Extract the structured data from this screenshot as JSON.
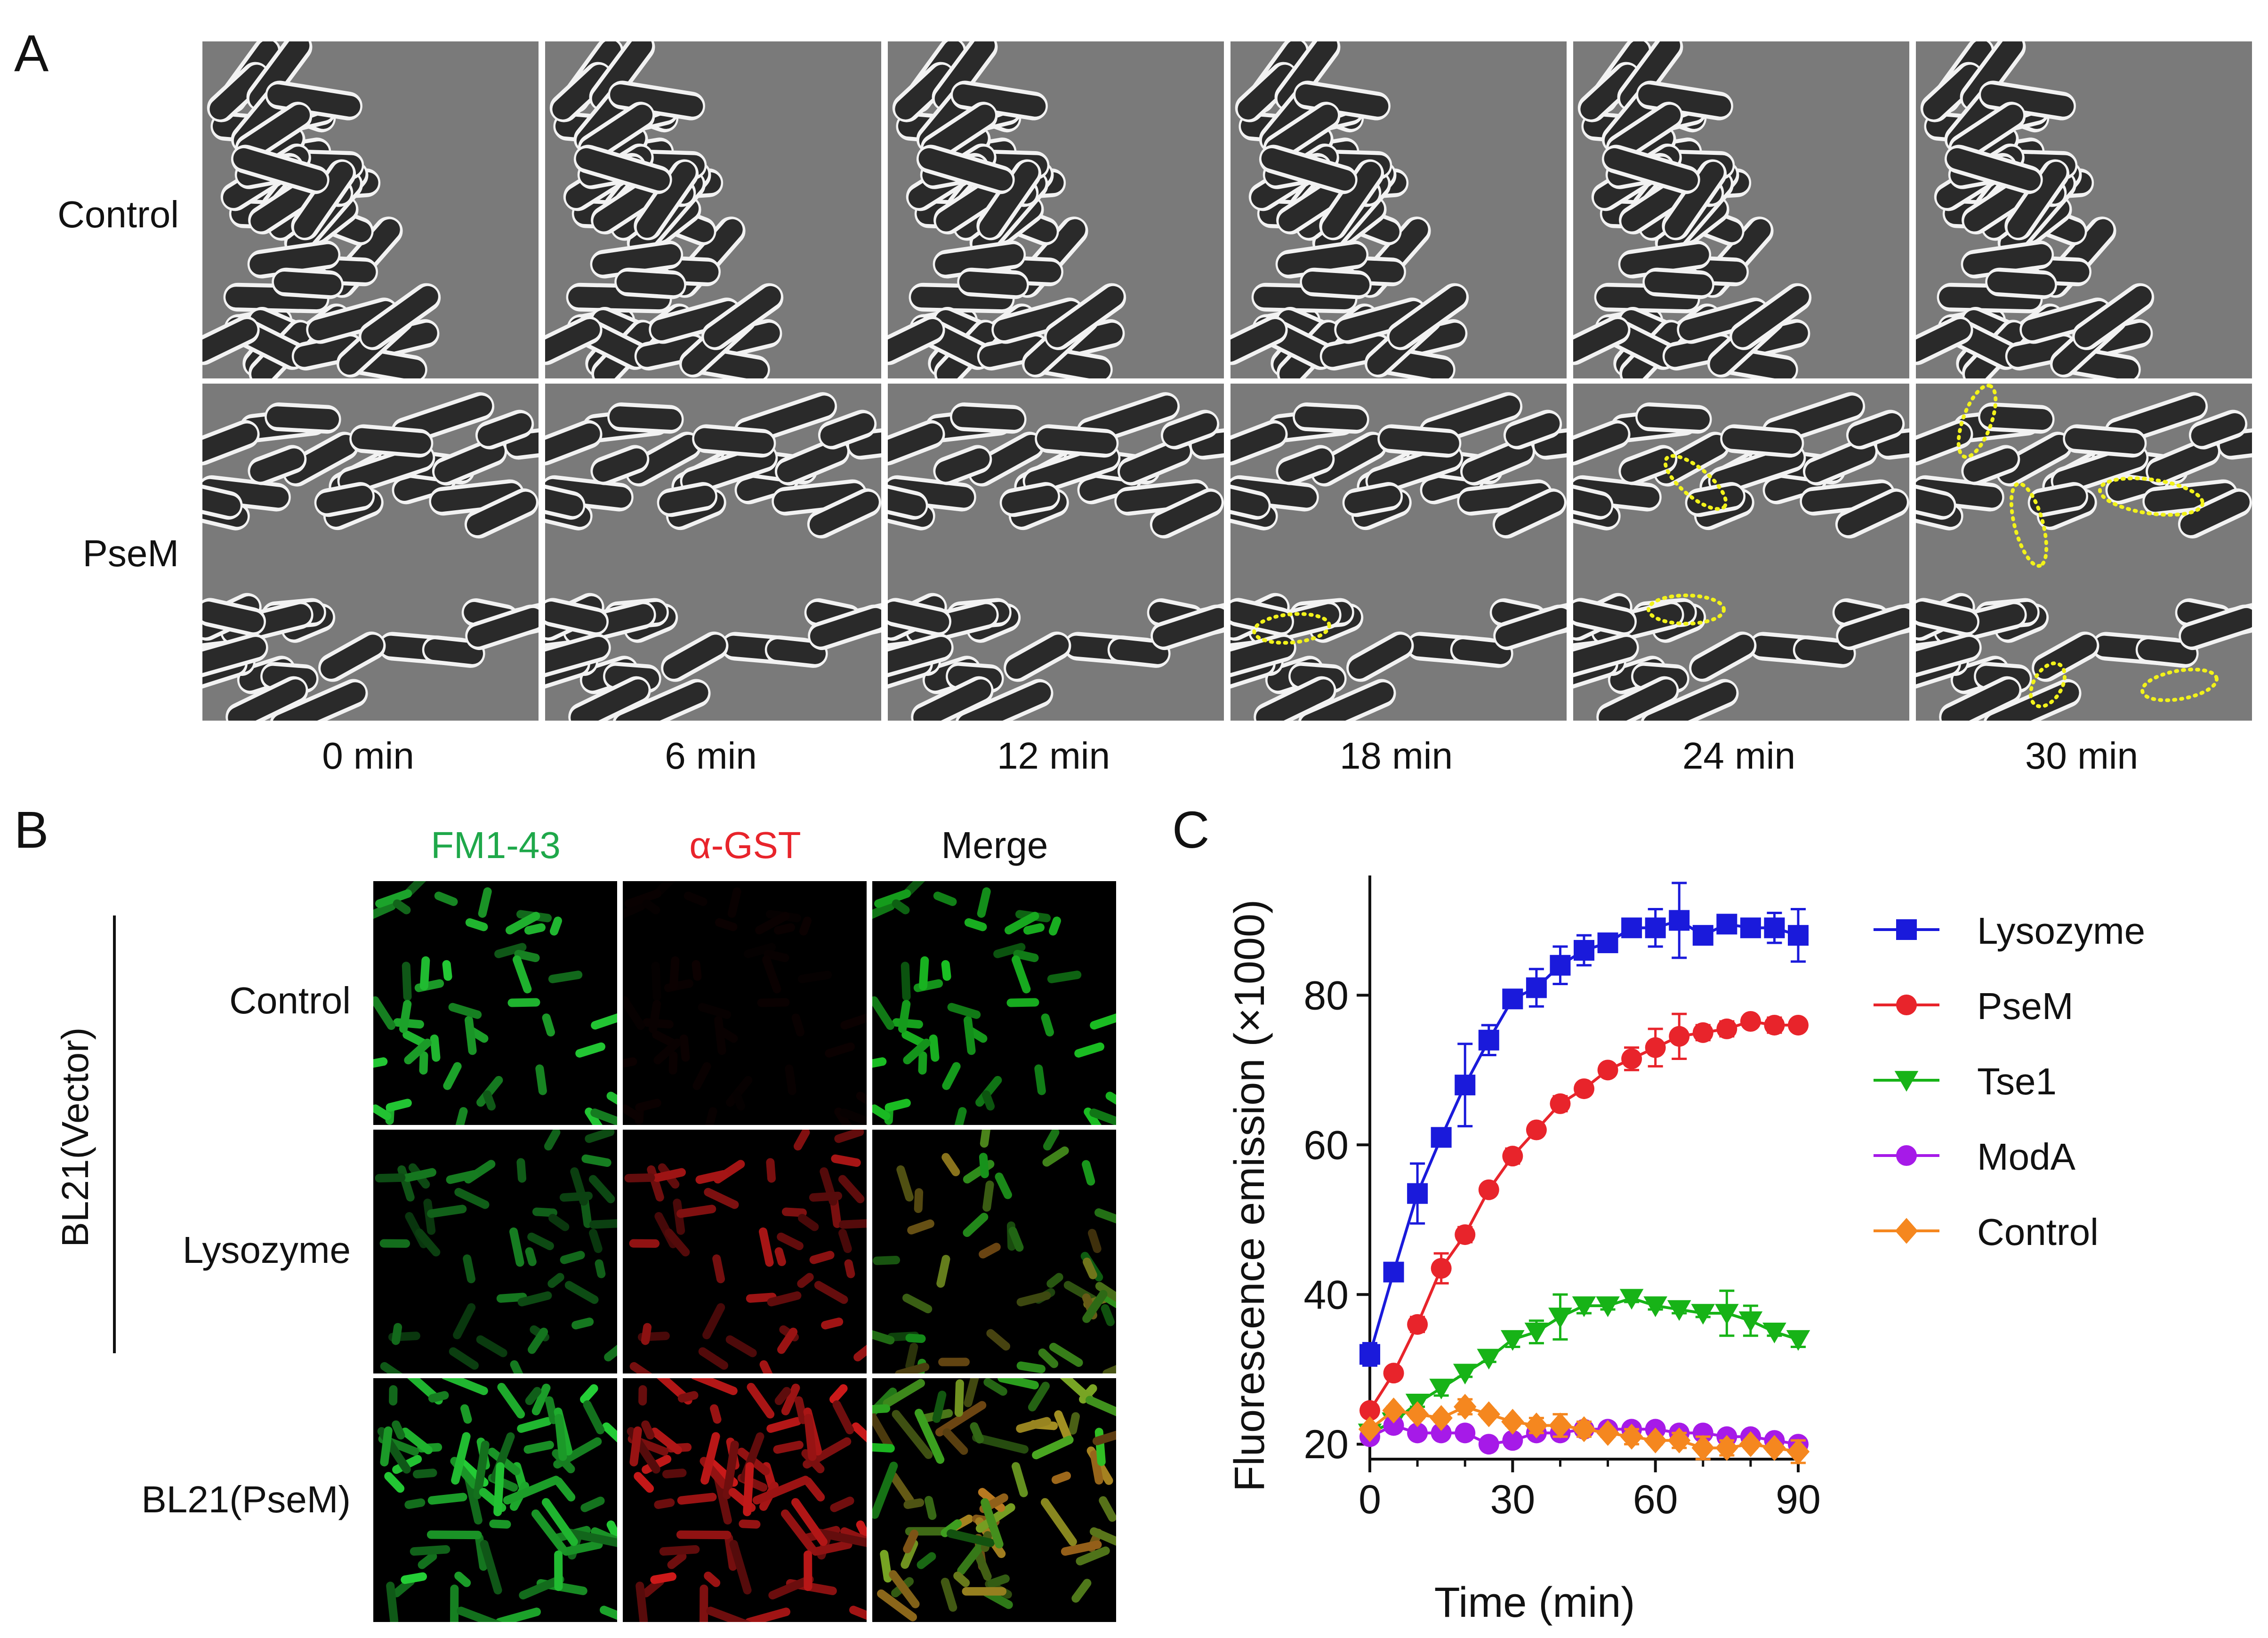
{
  "panels": {
    "a": {
      "letter": "A",
      "rows": [
        "Control",
        "PseM"
      ],
      "times": [
        "0 min",
        "6 min",
        "12 min",
        "18 min",
        "24 min",
        "30 min"
      ]
    },
    "b": {
      "letter": "B",
      "columns": [
        {
          "label": "FM1-43",
          "color": "#1fa84a"
        },
        {
          "label": "α-GST",
          "color": "#e8242b"
        },
        {
          "label": "Merge",
          "color": "#111111"
        }
      ],
      "group_label": "BL21(Vector)",
      "rows": [
        "Control",
        "Lysozyme",
        "BL21(PseM)"
      ]
    },
    "c": {
      "letter": "C"
    }
  },
  "chart_data": {
    "type": "line",
    "title": "",
    "xlabel": "Time (min)",
    "ylabel": "Fluorescence emission (×1000)",
    "xlim": [
      0,
      90
    ],
    "ylim": [
      18,
      96
    ],
    "xticks": [
      0,
      30,
      60,
      90
    ],
    "yticks": [
      20,
      40,
      60,
      80
    ],
    "legend_position": "right",
    "x": [
      0,
      5,
      10,
      15,
      20,
      25,
      30,
      35,
      40,
      45,
      50,
      55,
      60,
      65,
      70,
      75,
      80,
      85,
      90
    ],
    "series": [
      {
        "name": "Lysozyme",
        "color": "#1a1adb",
        "marker": "square",
        "values": [
          32,
          43,
          53.5,
          61,
          68,
          74,
          79.5,
          81,
          84,
          86,
          87,
          89,
          89,
          90,
          88,
          89.5,
          89,
          89,
          88
        ],
        "errors": [
          1.5,
          0.5,
          4,
          1,
          5.5,
          2,
          1,
          2.5,
          2.5,
          2,
          0.5,
          0.5,
          2.5,
          5,
          0.5,
          0.5,
          1,
          2,
          3.5
        ]
      },
      {
        "name": "PseM",
        "color": "#e8242b",
        "marker": "circle",
        "values": [
          24.5,
          29.5,
          36,
          43.5,
          48,
          54,
          58.5,
          62,
          65.5,
          67.5,
          70,
          71.5,
          73,
          74.5,
          75,
          75.5,
          76.5,
          76,
          76
        ],
        "errors": [
          0.5,
          0.5,
          1,
          2,
          1,
          0.5,
          1,
          0.5,
          1,
          0.5,
          0.5,
          1.5,
          2.5,
          3,
          1,
          1,
          0.5,
          1,
          0.5
        ]
      },
      {
        "name": "Tse1",
        "color": "#17b317",
        "marker": "triangle-down",
        "values": [
          21.5,
          23,
          25.5,
          27.5,
          29.5,
          31.5,
          34,
          35,
          37,
          38.5,
          38.5,
          39.5,
          38.5,
          38,
          37.5,
          37.5,
          36.5,
          35,
          34
        ],
        "errors": [
          0.5,
          0.5,
          0.5,
          1,
          0.5,
          0.5,
          1,
          1.5,
          3,
          1,
          0.5,
          0.5,
          0.5,
          0.5,
          0.5,
          3,
          2,
          0.5,
          1
        ]
      },
      {
        "name": "ModA",
        "color": "#a61ae8",
        "marker": "circle",
        "values": [
          21,
          22.5,
          21.5,
          21.5,
          21.5,
          20,
          20.5,
          21.5,
          21.5,
          22,
          22,
          22,
          22,
          21.5,
          21.5,
          21,
          21,
          20.5,
          20
        ],
        "errors": [
          0.5,
          0.5,
          0.5,
          0.5,
          0.5,
          0.5,
          0.5,
          0.5,
          0.5,
          0.5,
          0.5,
          0.5,
          0.5,
          0.5,
          0.5,
          0.5,
          0.5,
          0.5,
          0.5
        ]
      },
      {
        "name": "Control",
        "color": "#f5871f",
        "marker": "diamond",
        "values": [
          22,
          24.5,
          24,
          23.5,
          25,
          24,
          23,
          22.5,
          22.5,
          22,
          21.5,
          21,
          20.5,
          20.5,
          19.5,
          19.5,
          20,
          19.5,
          19
        ],
        "errors": [
          0.5,
          0.5,
          0.5,
          0.5,
          1,
          0.5,
          0.5,
          1,
          1.5,
          1,
          0.5,
          1,
          0.5,
          1,
          1.5,
          1,
          0.5,
          0.5,
          1.5
        ]
      }
    ]
  }
}
